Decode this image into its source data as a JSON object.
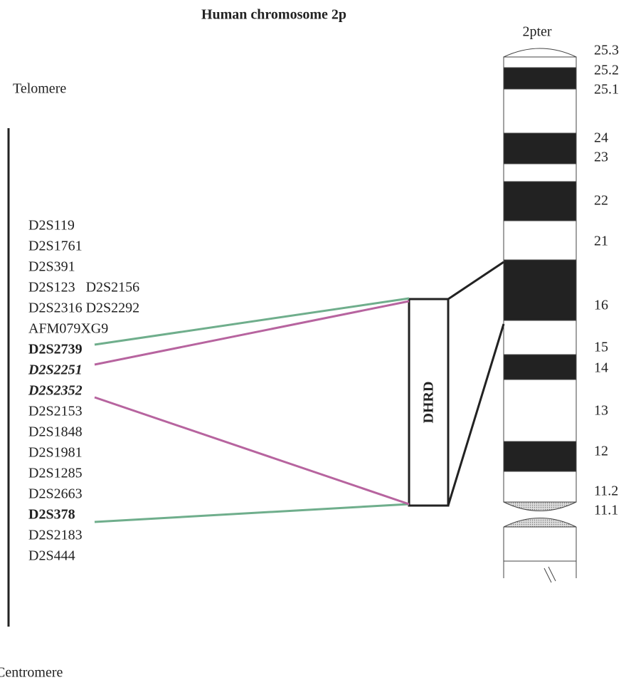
{
  "title": "Human chromosome 2p",
  "pter_label": "2pter",
  "telomere": "Telomere",
  "centromere": "Centromere",
  "region": "DHRD",
  "bands": [
    "25.3",
    "25.2",
    "25.1",
    "24",
    "23",
    "22",
    "21",
    "16",
    "15",
    "14",
    "13",
    "12",
    "11.2",
    "11.1"
  ],
  "markers": [
    {
      "text": "D2S119",
      "style": "normal"
    },
    {
      "text": "D2S1761",
      "style": "normal"
    },
    {
      "text": "D2S391",
      "style": "normal"
    },
    {
      "text": "D2S123   D2S2156",
      "style": "normal"
    },
    {
      "text": "D2S2316 D2S2292",
      "style": "normal"
    },
    {
      "text": "AFM079XG9",
      "style": "normal"
    },
    {
      "text": "D2S2739",
      "style": "bold"
    },
    {
      "text": "D2S2251",
      "style": "bold-italic"
    },
    {
      "text": "D2S2352",
      "style": "bold-italic"
    },
    {
      "text": "D2S2153",
      "style": "normal"
    },
    {
      "text": "D2S1848",
      "style": "normal"
    },
    {
      "text": "D2S1981",
      "style": "normal"
    },
    {
      "text": "D2S1285",
      "style": "normal"
    },
    {
      "text": "D2S2663",
      "style": "normal"
    },
    {
      "text": "D2S378",
      "style": "bold"
    },
    {
      "text": "D2S2183",
      "style": "normal"
    },
    {
      "text": "D2S444",
      "style": "normal"
    }
  ]
}
